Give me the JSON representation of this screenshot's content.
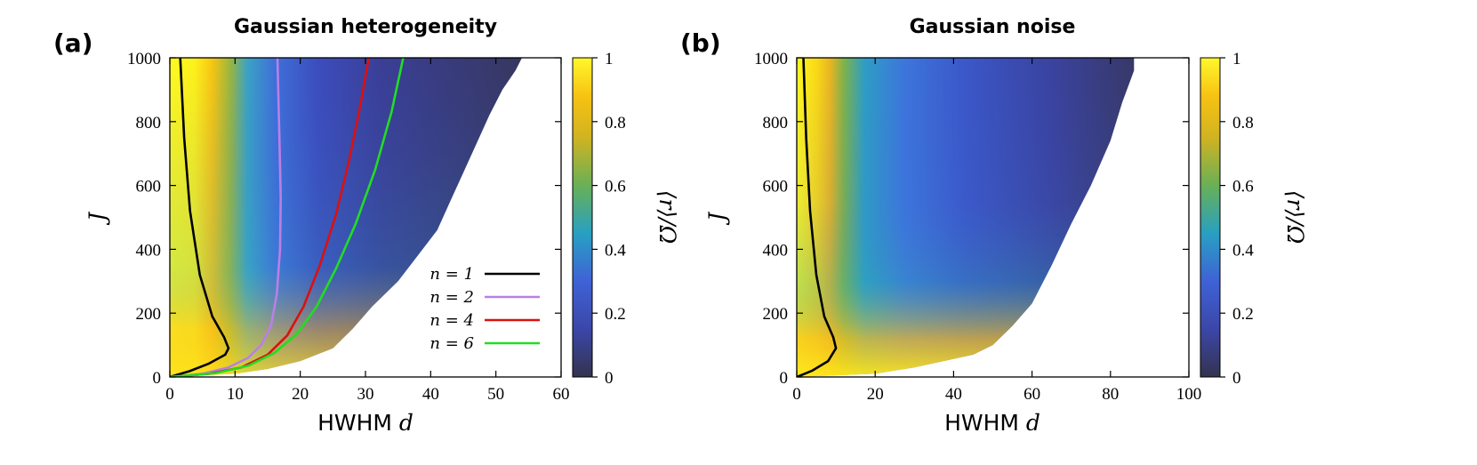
{
  "chart_data": [
    {
      "type": "heatmap",
      "panel_label": "(a)",
      "title": "Gaussian heterogeneity",
      "xlabel": "HWHM",
      "xlabel_var": "d",
      "ylabel": "J",
      "xlim": [
        0,
        60
      ],
      "ylim": [
        0,
        1000
      ],
      "xticks": [
        "0",
        "10",
        "20",
        "30",
        "40",
        "50",
        "60"
      ],
      "yticks": [
        "0",
        "200",
        "400",
        "600",
        "800",
        "1000"
      ],
      "colorbar": {
        "label": "⟨r⟩/Ω",
        "range": [
          0,
          1
        ],
        "ticks": [
          "0",
          "0.2",
          "0.4",
          "0.6",
          "0.8",
          "1"
        ]
      },
      "legend": {
        "position": "lower-right",
        "entries": [
          "n = 1",
          "n = 2",
          "n = 4",
          "n = 6"
        ]
      },
      "series": [
        {
          "name": "n = 1",
          "color": "#000000",
          "points": [
            [
              0,
              0
            ],
            [
              3,
              18
            ],
            [
              6,
              42
            ],
            [
              8.5,
              70
            ],
            [
              9,
              90
            ],
            [
              8.3,
              125
            ],
            [
              6.5,
              190
            ],
            [
              4.6,
              320
            ],
            [
              3.1,
              520
            ],
            [
              2.2,
              750
            ],
            [
              1.6,
              1000
            ]
          ]
        },
        {
          "name": "n = 2",
          "color": "#b980e6",
          "points": [
            [
              0,
              0
            ],
            [
              5,
              10
            ],
            [
              9,
              30
            ],
            [
              12,
              60
            ],
            [
              14,
              100
            ],
            [
              15.5,
              160
            ],
            [
              16.4,
              260
            ],
            [
              16.9,
              400
            ],
            [
              17,
              560
            ],
            [
              16.8,
              750
            ],
            [
              16.5,
              1000
            ]
          ]
        },
        {
          "name": "n = 4",
          "color": "#dc1010",
          "points": [
            [
              0,
              0
            ],
            [
              6,
              10
            ],
            [
              11,
              30
            ],
            [
              15,
              70
            ],
            [
              18,
              130
            ],
            [
              20.5,
              220
            ],
            [
              23,
              350
            ],
            [
              25.5,
              510
            ],
            [
              27.5,
              680
            ],
            [
              29.2,
              850
            ],
            [
              30.5,
              1000
            ]
          ]
        },
        {
          "name": "n = 6",
          "color": "#22dd22",
          "points": [
            [
              0,
              0
            ],
            [
              7,
              12
            ],
            [
              12,
              35
            ],
            [
              16,
              75
            ],
            [
              19.5,
              135
            ],
            [
              22.5,
              220
            ],
            [
              25.5,
              340
            ],
            [
              28.5,
              480
            ],
            [
              31.5,
              650
            ],
            [
              34,
              830
            ],
            [
              35.8,
              1000
            ]
          ]
        }
      ],
      "heatmap_boundary": [
        [
          0,
          0
        ],
        [
          10,
          10
        ],
        [
          15,
          25
        ],
        [
          20,
          50
        ],
        [
          25,
          90
        ],
        [
          28,
          150
        ],
        [
          31,
          220
        ],
        [
          35,
          300
        ],
        [
          38,
          380
        ],
        [
          41,
          460
        ],
        [
          43,
          550
        ],
        [
          45,
          640
        ],
        [
          47,
          730
        ],
        [
          49,
          820
        ],
        [
          51,
          900
        ],
        [
          53,
          960
        ],
        [
          54,
          1000
        ]
      ]
    },
    {
      "type": "heatmap",
      "panel_label": "(b)",
      "title": "Gaussian noise",
      "xlabel": "HWHM",
      "xlabel_var": "d",
      "ylabel": "J",
      "xlim": [
        0,
        100
      ],
      "ylim": [
        0,
        1000
      ],
      "xticks": [
        "0",
        "20",
        "40",
        "60",
        "80",
        "100"
      ],
      "yticks": [
        "0",
        "200",
        "400",
        "600",
        "800",
        "1000"
      ],
      "colorbar": {
        "label": "⟨r⟩/Ω",
        "range": [
          0,
          1
        ],
        "ticks": [
          "0",
          "0.2",
          "0.4",
          "0.6",
          "0.8",
          "1"
        ]
      },
      "series": [
        {
          "name": "",
          "color": "#000000",
          "points": [
            [
              0,
              0
            ],
            [
              4,
              20
            ],
            [
              8,
              50
            ],
            [
              10,
              90
            ],
            [
              9.3,
              125
            ],
            [
              7,
              190
            ],
            [
              5,
              320
            ],
            [
              3.4,
              520
            ],
            [
              2.4,
              750
            ],
            [
              1.7,
              1000
            ]
          ]
        }
      ],
      "heatmap_boundary": [
        [
          0,
          0
        ],
        [
          20,
          10
        ],
        [
          30,
          30
        ],
        [
          45,
          70
        ],
        [
          50,
          100
        ],
        [
          55,
          160
        ],
        [
          60,
          230
        ],
        [
          65,
          350
        ],
        [
          70,
          480
        ],
        [
          75,
          600
        ],
        [
          80,
          740
        ],
        [
          83,
          860
        ],
        [
          86,
          960
        ],
        [
          86,
          1000
        ]
      ]
    }
  ]
}
